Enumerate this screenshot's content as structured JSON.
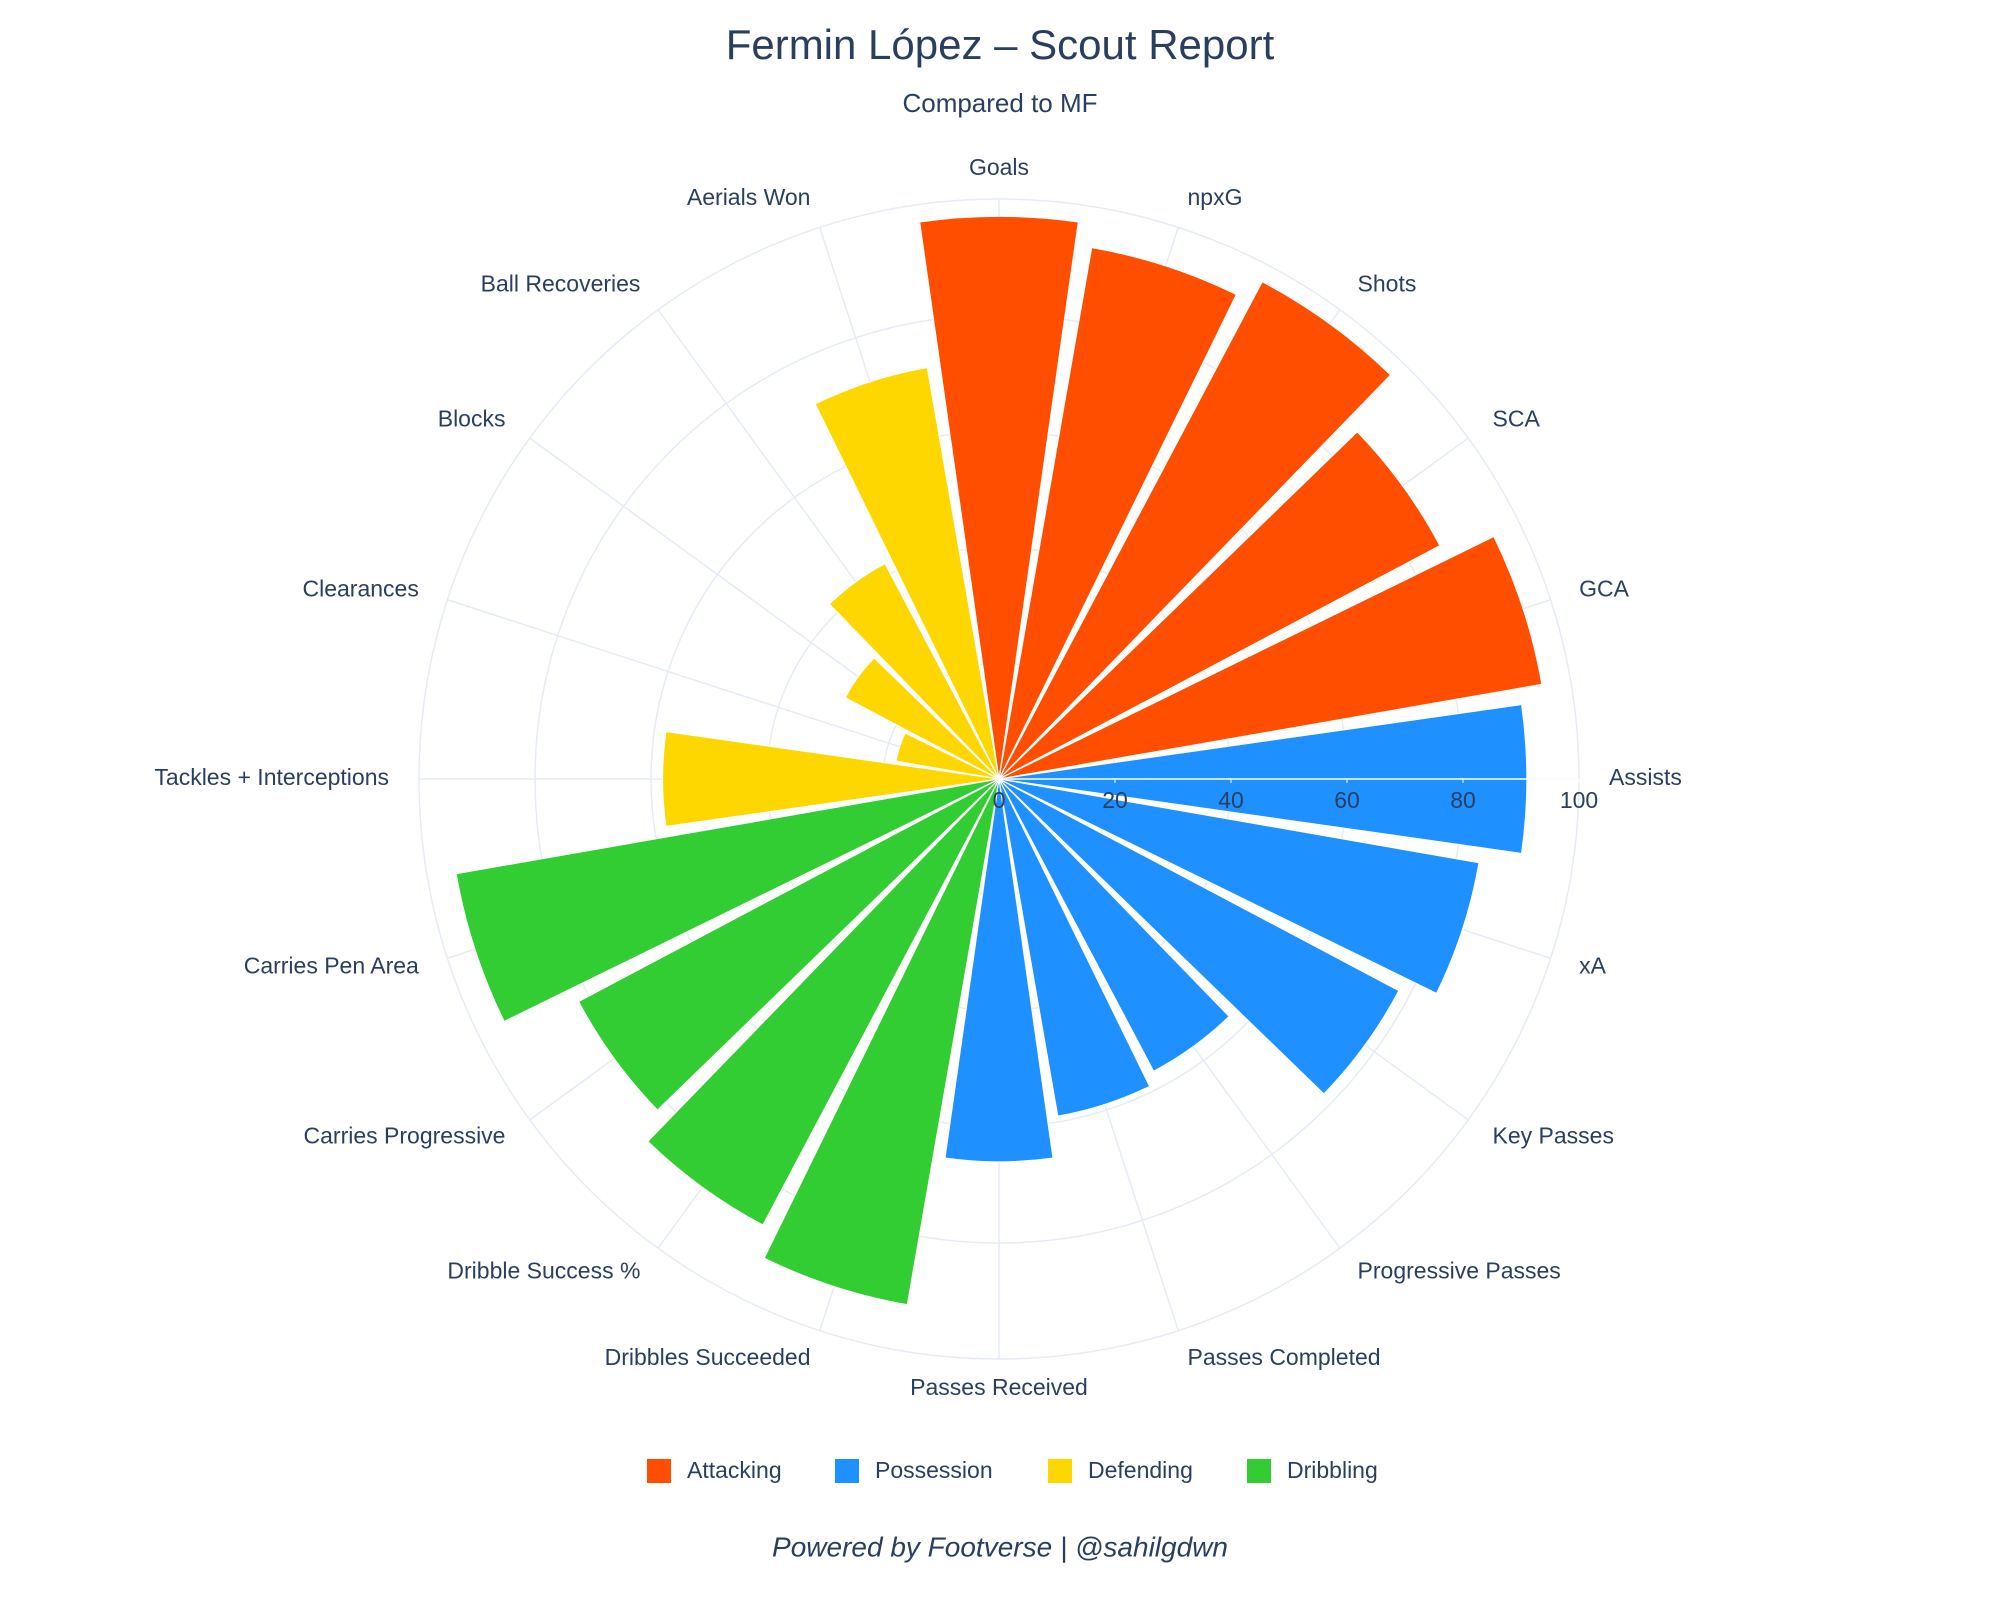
{
  "chart_data": {
    "type": "barpolar",
    "title": "Fermin López – Scout Report",
    "subtitle": "Compared to MF",
    "footer": "Powered by Footverse | @sahilgdwn",
    "categories": [
      "Goals",
      "npxG",
      "Shots",
      "SCA",
      "GCA",
      "Assists",
      "xA",
      "Key Passes",
      "Progressive Passes",
      "Passes Completed",
      "Passes Received",
      "Dribbles Succeeded",
      "Dribble Success %",
      "Carries Progressive",
      "Carries Pen Area",
      "Tackles + Interceptions",
      "Clearances",
      "Blocks",
      "Ball Recoveries",
      "Aerials Won"
    ],
    "series": [
      {
        "name": "Attacking",
        "color": "#ff4e00",
        "values": [
          97,
          93,
          97,
          86,
          95,
          null,
          null,
          null,
          null,
          null,
          null,
          null,
          null,
          null,
          null,
          null,
          null,
          null,
          null,
          null
        ]
      },
      {
        "name": "Possession",
        "color": "#1e90ff",
        "values": [
          null,
          null,
          null,
          null,
          null,
          91,
          84,
          78,
          57,
          59,
          66,
          null,
          null,
          null,
          null,
          null,
          null,
          null,
          null,
          null
        ]
      },
      {
        "name": "Defending",
        "color": "#ffd700",
        "values": [
          null,
          null,
          null,
          null,
          null,
          null,
          null,
          null,
          null,
          null,
          null,
          null,
          null,
          null,
          null,
          58,
          18,
          30,
          42,
          72
        ]
      },
      {
        "name": "Dribbling",
        "color": "#32cd32",
        "values": [
          null,
          null,
          null,
          null,
          null,
          null,
          null,
          null,
          null,
          null,
          null,
          92,
          87,
          82,
          95,
          null,
          null,
          null,
          null,
          null
        ]
      }
    ],
    "rlim": [
      0,
      100
    ],
    "rticks": [
      0,
      20,
      40,
      60,
      80,
      100
    ],
    "grid": true
  }
}
